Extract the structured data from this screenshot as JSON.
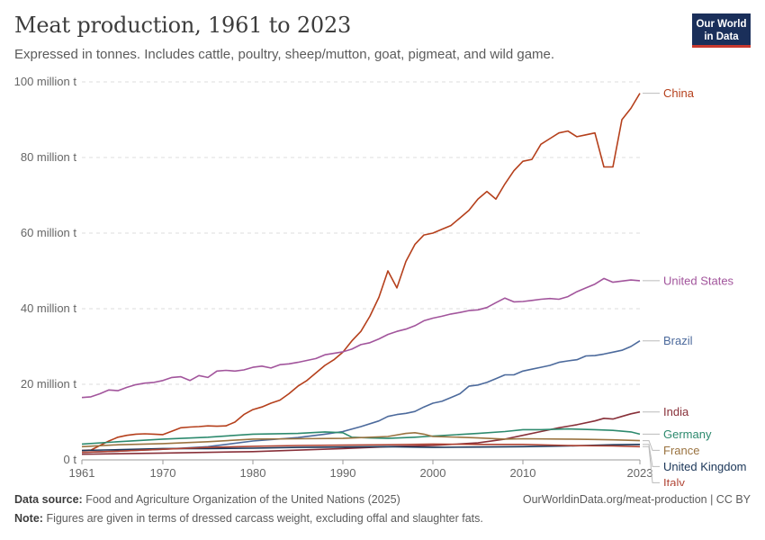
{
  "header": {
    "title": "Meat production, 1961 to 2023",
    "subtitle": "Expressed in tonnes. Includes cattle, poultry, sheep/mutton, goat, pigmeat, and wild game.",
    "logo_line1": "Our World",
    "logo_line2": "in Data"
  },
  "footer": {
    "source_label": "Data source:",
    "source_text": "Food and Agriculture Organization of the United Nations (2025)",
    "url": "OurWorldinData.org/meat-production | CC BY",
    "note_label": "Note:",
    "note_text": "Figures are given in terms of dressed carcass weight, excluding offal and slaughter fats."
  },
  "chart_data": {
    "type": "line",
    "xlim": [
      1961,
      2023
    ],
    "ylim": [
      0,
      100
    ],
    "x_ticks": [
      1961,
      1970,
      1980,
      1990,
      2000,
      2010,
      2023
    ],
    "y_ticks": [
      0,
      20,
      40,
      60,
      80,
      100
    ],
    "y_tick_labels": [
      "0 t",
      "20 million t",
      "40 million t",
      "60 million t",
      "80 million t",
      "100 million t"
    ],
    "grid": "horizontal dashed",
    "legend": "right, labels at line ends",
    "series": [
      {
        "name": "China",
        "color": "#b5401c",
        "points": [
          [
            1961,
            2.5
          ],
          [
            1962,
            2.6
          ],
          [
            1963,
            3.8
          ],
          [
            1964,
            5.0
          ],
          [
            1965,
            6.0
          ],
          [
            1966,
            6.5
          ],
          [
            1967,
            6.8
          ],
          [
            1968,
            6.9
          ],
          [
            1969,
            6.8
          ],
          [
            1970,
            6.7
          ],
          [
            1971,
            7.6
          ],
          [
            1972,
            8.5
          ],
          [
            1973,
            8.7
          ],
          [
            1974,
            8.8
          ],
          [
            1975,
            9.0
          ],
          [
            1976,
            8.9
          ],
          [
            1977,
            9.0
          ],
          [
            1978,
            10.0
          ],
          [
            1979,
            12.0
          ],
          [
            1980,
            13.3
          ],
          [
            1981,
            14.0
          ],
          [
            1982,
            15.0
          ],
          [
            1983,
            15.8
          ],
          [
            1984,
            17.5
          ],
          [
            1985,
            19.5
          ],
          [
            1986,
            21.0
          ],
          [
            1987,
            23.0
          ],
          [
            1988,
            25.0
          ],
          [
            1989,
            26.5
          ],
          [
            1990,
            28.5
          ],
          [
            1991,
            31.5
          ],
          [
            1992,
            34.0
          ],
          [
            1993,
            38.0
          ],
          [
            1994,
            43.0
          ],
          [
            1995,
            50.0
          ],
          [
            1996,
            45.5
          ],
          [
            1997,
            52.5
          ],
          [
            1998,
            57.0
          ],
          [
            1999,
            59.5
          ],
          [
            2000,
            60.0
          ],
          [
            2001,
            61.0
          ],
          [
            2002,
            62.0
          ],
          [
            2003,
            64.0
          ],
          [
            2004,
            66.0
          ],
          [
            2005,
            69.0
          ],
          [
            2006,
            71.0
          ],
          [
            2007,
            69.0
          ],
          [
            2008,
            73.0
          ],
          [
            2009,
            76.5
          ],
          [
            2010,
            79.0
          ],
          [
            2011,
            79.5
          ],
          [
            2012,
            83.5
          ],
          [
            2013,
            85.0
          ],
          [
            2014,
            86.5
          ],
          [
            2015,
            87.0
          ],
          [
            2016,
            85.5
          ],
          [
            2017,
            86.0
          ],
          [
            2018,
            86.5
          ],
          [
            2019,
            77.5
          ],
          [
            2020,
            77.5
          ],
          [
            2021,
            90.0
          ],
          [
            2022,
            93.0
          ],
          [
            2023,
            97.0
          ]
        ]
      },
      {
        "name": "United States",
        "color": "#a2559c",
        "points": [
          [
            1961,
            16.5
          ],
          [
            1962,
            16.7
          ],
          [
            1963,
            17.5
          ],
          [
            1964,
            18.5
          ],
          [
            1965,
            18.3
          ],
          [
            1966,
            19.2
          ],
          [
            1967,
            19.9
          ],
          [
            1968,
            20.3
          ],
          [
            1969,
            20.5
          ],
          [
            1970,
            21.0
          ],
          [
            1971,
            21.8
          ],
          [
            1972,
            22.0
          ],
          [
            1973,
            21.0
          ],
          [
            1974,
            22.3
          ],
          [
            1975,
            21.8
          ],
          [
            1976,
            23.5
          ],
          [
            1977,
            23.7
          ],
          [
            1978,
            23.5
          ],
          [
            1979,
            23.8
          ],
          [
            1980,
            24.5
          ],
          [
            1981,
            24.8
          ],
          [
            1982,
            24.3
          ],
          [
            1983,
            25.2
          ],
          [
            1984,
            25.4
          ],
          [
            1985,
            25.8
          ],
          [
            1986,
            26.3
          ],
          [
            1987,
            26.8
          ],
          [
            1988,
            27.8
          ],
          [
            1989,
            28.2
          ],
          [
            1990,
            28.6
          ],
          [
            1991,
            29.3
          ],
          [
            1992,
            30.5
          ],
          [
            1993,
            31.0
          ],
          [
            1994,
            32.0
          ],
          [
            1995,
            33.2
          ],
          [
            1996,
            34.0
          ],
          [
            1997,
            34.6
          ],
          [
            1998,
            35.5
          ],
          [
            1999,
            36.8
          ],
          [
            2000,
            37.5
          ],
          [
            2001,
            38.0
          ],
          [
            2002,
            38.6
          ],
          [
            2003,
            39.0
          ],
          [
            2004,
            39.5
          ],
          [
            2005,
            39.7
          ],
          [
            2006,
            40.3
          ],
          [
            2007,
            41.6
          ],
          [
            2008,
            42.8
          ],
          [
            2009,
            41.8
          ],
          [
            2010,
            41.9
          ],
          [
            2011,
            42.2
          ],
          [
            2012,
            42.5
          ],
          [
            2013,
            42.7
          ],
          [
            2014,
            42.5
          ],
          [
            2015,
            43.2
          ],
          [
            2016,
            44.5
          ],
          [
            2017,
            45.5
          ],
          [
            2018,
            46.5
          ],
          [
            2019,
            48.0
          ],
          [
            2020,
            47.0
          ],
          [
            2021,
            47.3
          ],
          [
            2022,
            47.6
          ],
          [
            2023,
            47.4
          ]
        ]
      },
      {
        "name": "Brazil",
        "color": "#4c6a9c",
        "points": [
          [
            1961,
            2.0
          ],
          [
            1965,
            2.3
          ],
          [
            1970,
            2.8
          ],
          [
            1975,
            3.5
          ],
          [
            1980,
            5.0
          ],
          [
            1985,
            5.9
          ],
          [
            1988,
            6.8
          ],
          [
            1990,
            7.5
          ],
          [
            1992,
            8.8
          ],
          [
            1994,
            10.3
          ],
          [
            1995,
            11.5
          ],
          [
            1996,
            12.0
          ],
          [
            1997,
            12.3
          ],
          [
            1998,
            12.8
          ],
          [
            1999,
            14.0
          ],
          [
            2000,
            15.0
          ],
          [
            2001,
            15.5
          ],
          [
            2002,
            16.5
          ],
          [
            2003,
            17.5
          ],
          [
            2004,
            19.5
          ],
          [
            2005,
            19.8
          ],
          [
            2006,
            20.5
          ],
          [
            2007,
            21.5
          ],
          [
            2008,
            22.5
          ],
          [
            2009,
            22.5
          ],
          [
            2010,
            23.5
          ],
          [
            2011,
            24.0
          ],
          [
            2012,
            24.5
          ],
          [
            2013,
            25.0
          ],
          [
            2014,
            25.8
          ],
          [
            2015,
            26.2
          ],
          [
            2016,
            26.5
          ],
          [
            2017,
            27.5
          ],
          [
            2018,
            27.6
          ],
          [
            2019,
            28.0
          ],
          [
            2020,
            28.5
          ],
          [
            2021,
            29.0
          ],
          [
            2022,
            30.0
          ],
          [
            2023,
            31.5
          ]
        ]
      },
      {
        "name": "India",
        "color": "#883039",
        "points": [
          [
            1961,
            1.5
          ],
          [
            1970,
            1.8
          ],
          [
            1980,
            2.2
          ],
          [
            1990,
            3.0
          ],
          [
            1995,
            3.5
          ],
          [
            2000,
            3.8
          ],
          [
            2005,
            4.5
          ],
          [
            2008,
            5.5
          ],
          [
            2010,
            6.5
          ],
          [
            2012,
            7.5
          ],
          [
            2014,
            8.5
          ],
          [
            2016,
            9.3
          ],
          [
            2018,
            10.3
          ],
          [
            2019,
            11.0
          ],
          [
            2020,
            10.8
          ],
          [
            2021,
            11.5
          ],
          [
            2022,
            12.2
          ],
          [
            2023,
            12.7
          ]
        ]
      },
      {
        "name": "Germany",
        "color": "#2d8a6e",
        "points": [
          [
            1961,
            4.2
          ],
          [
            1965,
            4.8
          ],
          [
            1970,
            5.5
          ],
          [
            1975,
            6.0
          ],
          [
            1980,
            6.8
          ],
          [
            1985,
            7.0
          ],
          [
            1988,
            7.4
          ],
          [
            1990,
            7.2
          ],
          [
            1991,
            6.0
          ],
          [
            1993,
            5.8
          ],
          [
            1995,
            5.7
          ],
          [
            1998,
            6.0
          ],
          [
            2000,
            6.3
          ],
          [
            2005,
            7.0
          ],
          [
            2008,
            7.5
          ],
          [
            2010,
            8.0
          ],
          [
            2012,
            8.0
          ],
          [
            2015,
            8.2
          ],
          [
            2018,
            8.0
          ],
          [
            2020,
            7.8
          ],
          [
            2022,
            7.4
          ],
          [
            2023,
            6.8
          ]
        ]
      },
      {
        "name": "France",
        "color": "#9a7340",
        "points": [
          [
            1961,
            3.5
          ],
          [
            1965,
            4.0
          ],
          [
            1970,
            4.3
          ],
          [
            1975,
            4.8
          ],
          [
            1980,
            5.5
          ],
          [
            1985,
            5.6
          ],
          [
            1990,
            5.7
          ],
          [
            1995,
            6.2
          ],
          [
            1997,
            7.0
          ],
          [
            1998,
            7.2
          ],
          [
            1999,
            6.8
          ],
          [
            2000,
            6.2
          ],
          [
            2003,
            6.0
          ],
          [
            2005,
            5.8
          ],
          [
            2008,
            5.5
          ],
          [
            2010,
            5.6
          ],
          [
            2015,
            5.5
          ],
          [
            2018,
            5.4
          ],
          [
            2020,
            5.3
          ],
          [
            2023,
            5.1
          ]
        ]
      },
      {
        "name": "United Kingdom",
        "color": "#1b3658",
        "points": [
          [
            1961,
            2.5
          ],
          [
            1965,
            2.7
          ],
          [
            1970,
            3.0
          ],
          [
            1975,
            3.0
          ],
          [
            1980,
            3.1
          ],
          [
            1985,
            3.3
          ],
          [
            1990,
            3.4
          ],
          [
            1995,
            3.5
          ],
          [
            2000,
            3.3
          ],
          [
            2005,
            3.4
          ],
          [
            2010,
            3.5
          ],
          [
            2015,
            3.7
          ],
          [
            2020,
            4.0
          ],
          [
            2023,
            4.1
          ]
        ]
      },
      {
        "name": "Italy",
        "color": "#b04434",
        "points": [
          [
            1961,
            2.0
          ],
          [
            1965,
            2.3
          ],
          [
            1970,
            2.8
          ],
          [
            1975,
            3.3
          ],
          [
            1980,
            3.6
          ],
          [
            1985,
            3.8
          ],
          [
            1990,
            3.9
          ],
          [
            1995,
            4.0
          ],
          [
            2000,
            4.2
          ],
          [
            2005,
            4.1
          ],
          [
            2010,
            4.1
          ],
          [
            2015,
            3.8
          ],
          [
            2020,
            3.7
          ],
          [
            2023,
            3.5
          ]
        ]
      }
    ]
  }
}
